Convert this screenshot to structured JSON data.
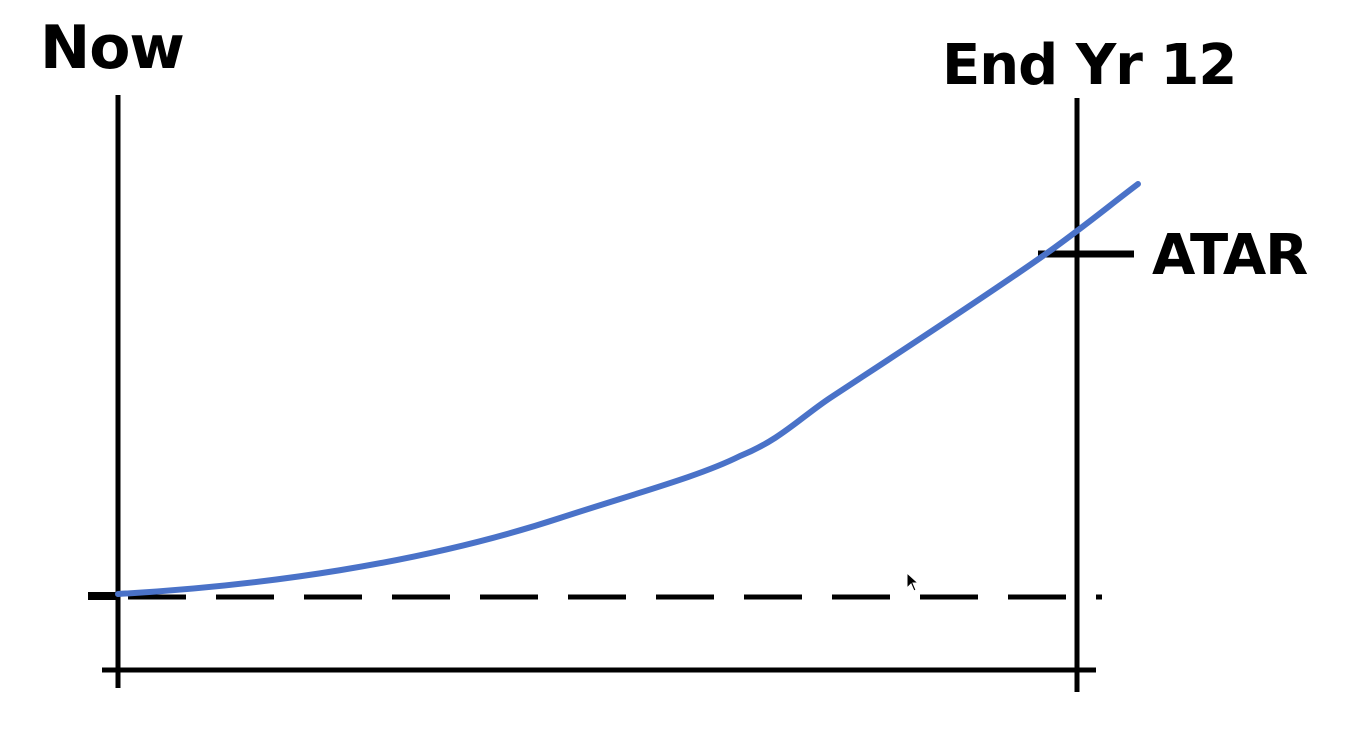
{
  "labels": {
    "start": "Now",
    "end": "End Yr 12",
    "target": "ATAR"
  },
  "colors": {
    "curve": "#4a72c8",
    "lines": "#000000",
    "background": "#ffffff"
  },
  "icons": {
    "cursor": "mouse-pointer-icon"
  }
}
